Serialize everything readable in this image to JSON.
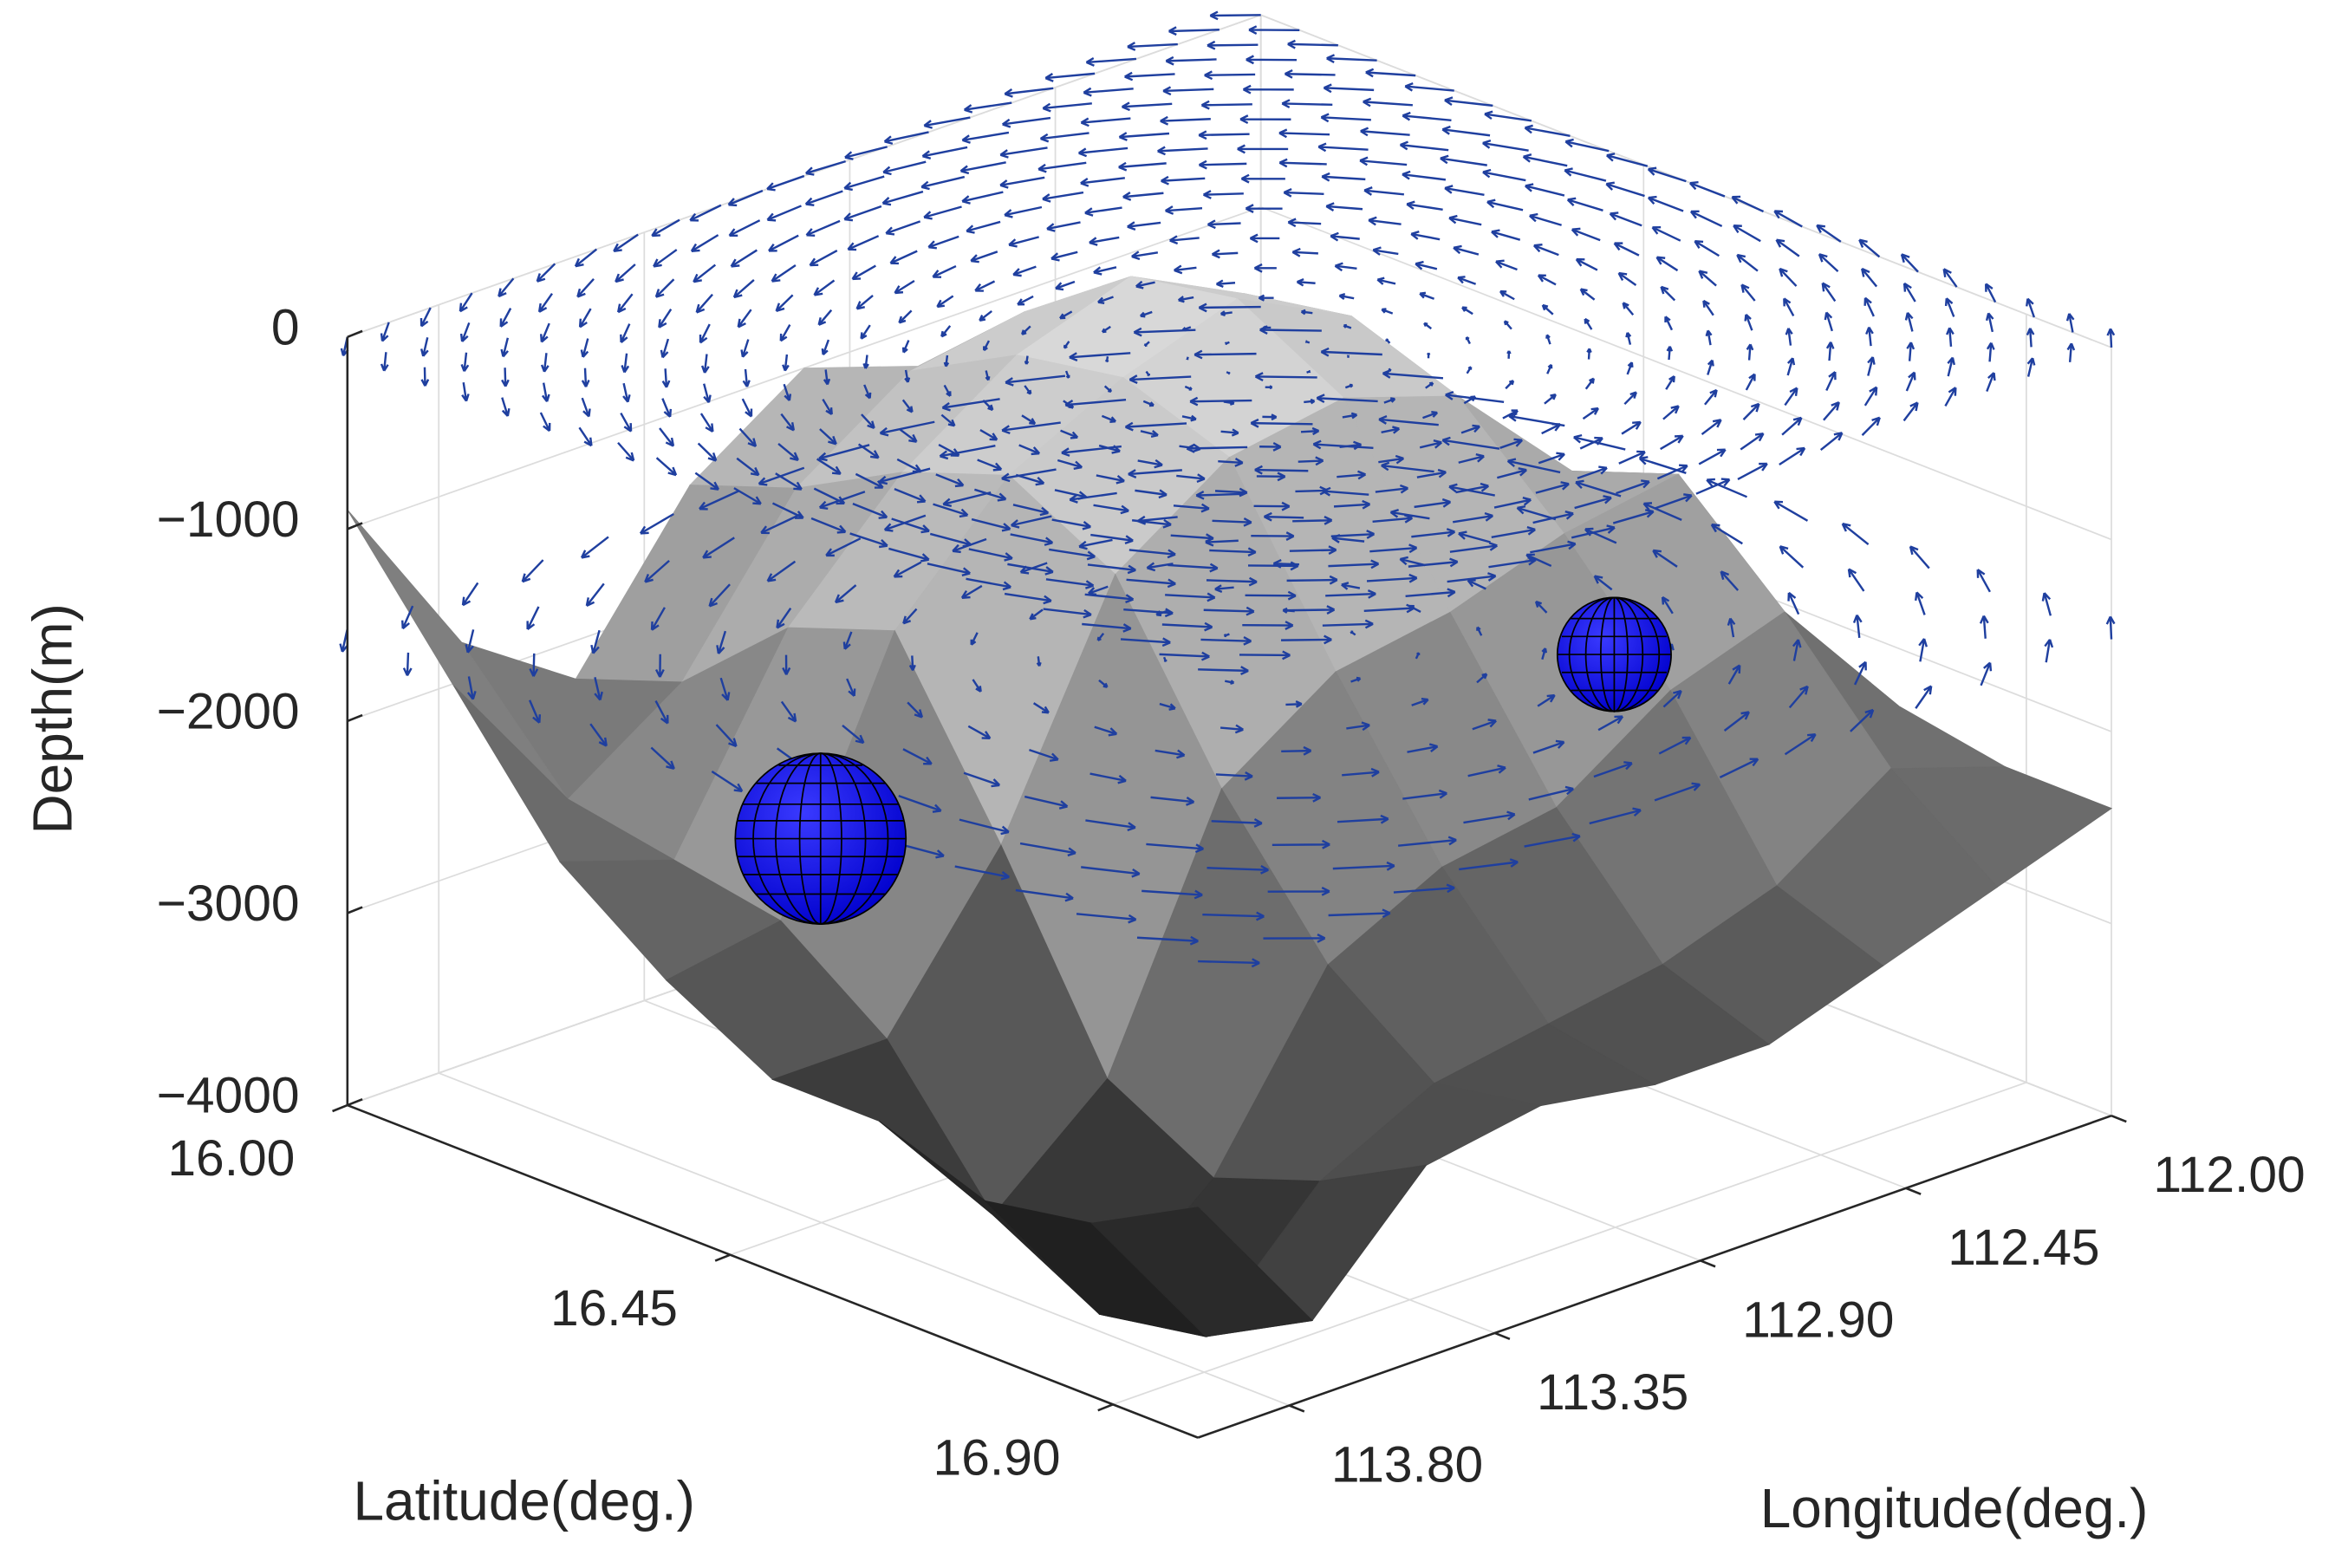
{
  "chart_data": {
    "type": "surface",
    "xlabel": "Latitude(deg.)",
    "ylabel": "Longitude(deg.)",
    "zlabel": "Depth(m)",
    "xlim": [
      16.0,
      17.0
    ],
    "xticks": [
      {
        "value": 16.0,
        "label": "16.00"
      },
      16.45,
      {
        "value": 16.9,
        "label": "16.90"
      }
    ],
    "ylim": [
      112.0,
      114.0
    ],
    "yticks": [
      {
        "value": 112.0,
        "label": "112.00"
      },
      {
        "value": 112.45,
        "label": "112.45"
      },
      {
        "value": 112.9,
        "label": "112.90"
      },
      113.35,
      {
        "value": 113.8,
        "label": "113.80"
      }
    ],
    "zlim": [
      -4000,
      0
    ],
    "zticks": [
      0,
      {
        "value": -1000,
        "label": "−1000"
      },
      {
        "value": -2000,
        "label": "−2000"
      },
      {
        "value": -3000,
        "label": "−3000"
      },
      {
        "value": -4000,
        "label": "−4000"
      }
    ],
    "grid": true,
    "surface": {
      "x": [
        16.0,
        16.125,
        16.25,
        16.375,
        16.5,
        16.625,
        16.75,
        16.875,
        17.0
      ],
      "y": [
        112.0,
        112.25,
        112.5,
        112.75,
        113.0,
        113.25,
        113.5,
        113.75,
        114.0
      ],
      "z": [
        [
          -2000,
          -1800,
          -1500,
          -1200,
          -1000,
          -1400,
          -2200,
          -1800,
          -900
        ],
        [
          -2200,
          -1600,
          -1000,
          -700,
          -800,
          -1200,
          -2000,
          -2400,
          -1600
        ],
        [
          -2300,
          -1400,
          -600,
          -300,
          -500,
          -900,
          -1500,
          -2500,
          -2300
        ],
        [
          -2400,
          -1500,
          -500,
          -200,
          -400,
          -700,
          -1300,
          -2600,
          -2700
        ],
        [
          -2300,
          -1300,
          -700,
          -500,
          -600,
          -1000,
          -2200,
          -3000,
          -3000
        ],
        [
          -2200,
          -1100,
          -1200,
          -1400,
          -1500,
          -1900,
          -3200,
          -3700,
          -3000
        ],
        [
          -2300,
          -1600,
          -1800,
          -2200,
          -2300,
          -2600,
          -3500,
          -4000,
          -3200
        ],
        [
          -2400,
          -2200,
          -2600,
          -2800,
          -2900,
          -3000,
          -3300,
          -3900,
          -3100
        ],
        [
          -2400,
          -2600,
          -2800,
          -3000,
          -3000,
          -2900,
          -3000,
          -3600,
          -2800
        ]
      ]
    }
  }
}
